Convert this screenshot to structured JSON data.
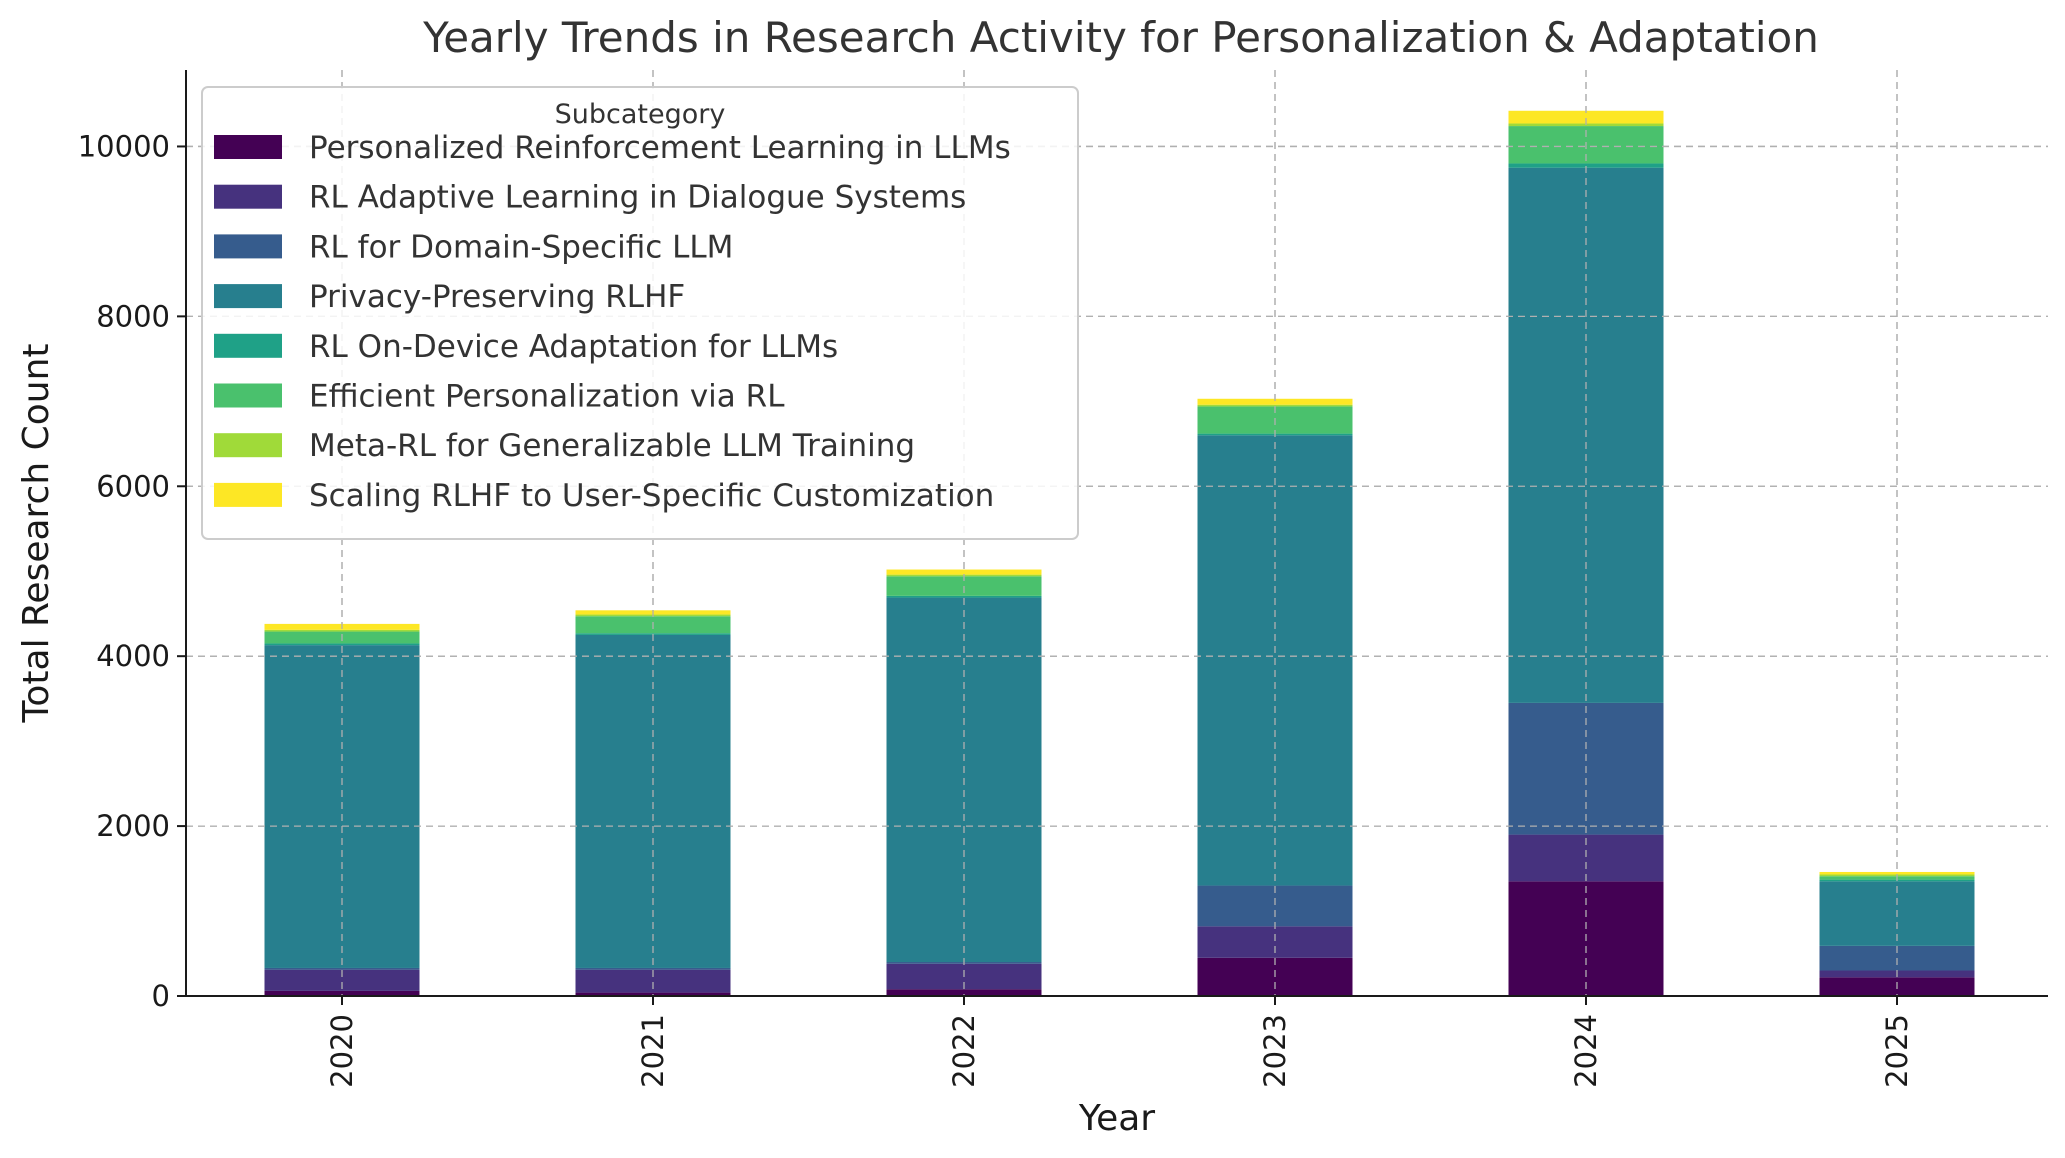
{
  "chart_data": {
    "type": "bar",
    "stacked": true,
    "title": "Yearly Trends in Research Activity for Personalization & Adaptation",
    "xlabel": "Year",
    "ylabel": "Total Research Count",
    "ylim": [
      0,
      10900
    ],
    "yticks": [
      0,
      2000,
      4000,
      6000,
      8000,
      10000
    ],
    "grid": true,
    "legend_title": "Subcategory",
    "legend_position": "upper-left",
    "categories": [
      "2020",
      "2021",
      "2022",
      "2023",
      "2024",
      "2025"
    ],
    "series": [
      {
        "name": "Personalized Reinforcement Learning in LLMs",
        "color": "#440154",
        "values": [
          60,
          40,
          80,
          450,
          1350,
          220
        ]
      },
      {
        "name": "RL Adaptive Learning in Dialogue Systems",
        "color": "#46327e",
        "values": [
          250,
          270,
          300,
          370,
          550,
          80
        ]
      },
      {
        "name": "RL for Domain-Specific LLM",
        "color": "#365c8d",
        "values": [
          20,
          20,
          20,
          480,
          1550,
          290
        ]
      },
      {
        "name": "Privacy-Preserving RLHF",
        "color": "#277f8e",
        "values": [
          3800,
          3920,
          4290,
          5300,
          6300,
          760
        ]
      },
      {
        "name": "RL On-Device Adaptation for LLMs",
        "color": "#1fa187",
        "values": [
          20,
          20,
          20,
          20,
          50,
          20
        ]
      },
      {
        "name": "Efficient Personalization via RL",
        "color": "#4ac16d",
        "values": [
          140,
          200,
          230,
          320,
          440,
          40
        ]
      },
      {
        "name": "Meta-RL for Generalizable LLM Training",
        "color": "#a0da39",
        "values": [
          20,
          20,
          20,
          20,
          30,
          20
        ]
      },
      {
        "name": "Scaling RLHF to User-Specific Customization",
        "color": "#fde725",
        "values": [
          70,
          50,
          60,
          70,
          150,
          30
        ]
      }
    ]
  }
}
